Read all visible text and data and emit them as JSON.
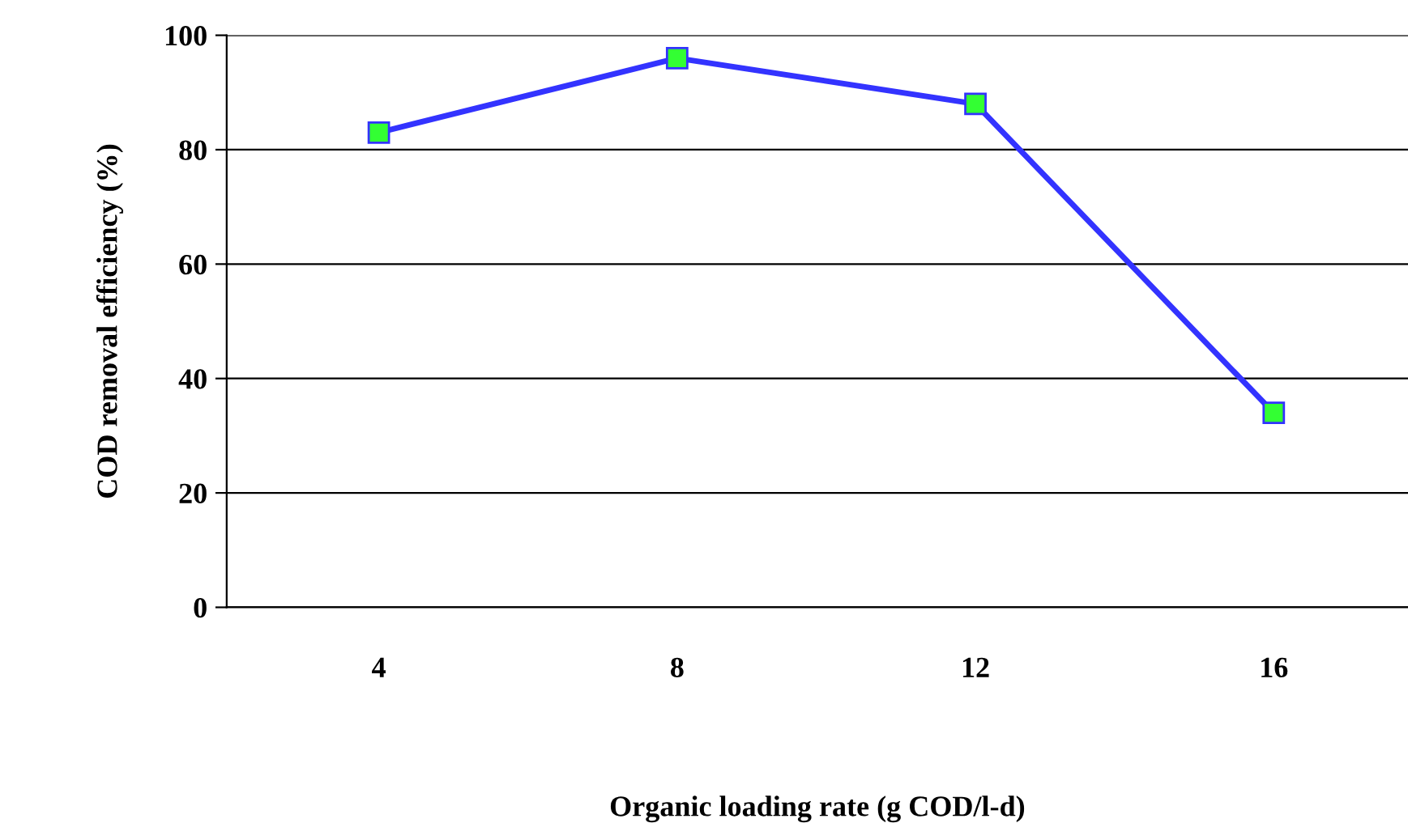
{
  "chart_data": {
    "type": "line",
    "xlabel": "Organic loading rate (g COD/l-d)",
    "ylabel": "COD removal efficiency (%)",
    "categories": [
      "4",
      "8",
      "12",
      "16"
    ],
    "series": [
      {
        "color": "#3333ff",
        "values": [
          83,
          96,
          88,
          34
        ]
      }
    ],
    "ylim": [
      0,
      100
    ],
    "yticks": [
      0,
      20,
      40,
      60,
      80,
      100
    ],
    "grid": "y",
    "marker": "square",
    "line_style": "solid",
    "legend": false
  }
}
